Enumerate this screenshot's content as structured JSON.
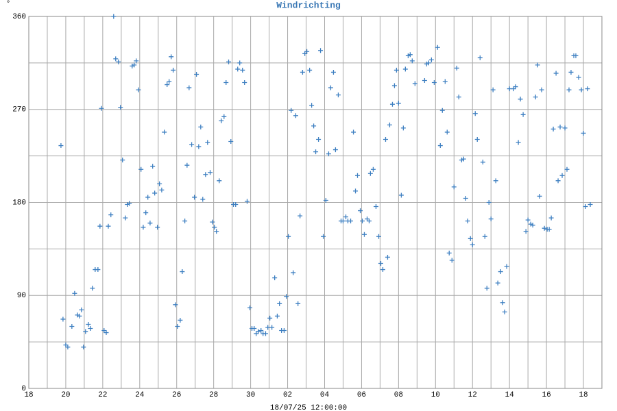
{
  "chart_data": {
    "type": "scatter",
    "title": "Windrichting",
    "xlabel": "18/07/25 12:00:00",
    "ylabel": "°",
    "color": "#3d7fc1",
    "grid": true,
    "xlim": [
      0,
      31
    ],
    "ylim": [
      0,
      360
    ],
    "xticks": [
      {
        "value": 0,
        "label": "18"
      },
      {
        "value": 2,
        "label": "20"
      },
      {
        "value": 4,
        "label": "22"
      },
      {
        "value": 6,
        "label": "24"
      },
      {
        "value": 8,
        "label": "26"
      },
      {
        "value": 10,
        "label": "28"
      },
      {
        "value": 12,
        "label": "30"
      },
      {
        "value": 14,
        "label": "02"
      },
      {
        "value": 16,
        "label": "04"
      },
      {
        "value": 18,
        "label": "06"
      },
      {
        "value": 20,
        "label": "08"
      },
      {
        "value": 22,
        "label": "10"
      },
      {
        "value": 24,
        "label": "12"
      },
      {
        "value": 26,
        "label": "14"
      },
      {
        "value": 28,
        "label": "16"
      },
      {
        "value": 30,
        "label": "18"
      }
    ],
    "minor_xticks": [
      1,
      3,
      5,
      7,
      9,
      11,
      13,
      15,
      17,
      19,
      21,
      23,
      25,
      27,
      29
    ],
    "yticks": [
      0,
      90,
      180,
      270,
      360
    ],
    "minor_yticks": [
      45,
      135,
      225,
      315
    ],
    "x": [
      1.74,
      1.85,
      2.0,
      2.11,
      2.33,
      2.48,
      2.63,
      2.74,
      2.85,
      2.96,
      3.07,
      3.22,
      3.33,
      3.44,
      3.59,
      3.74,
      3.85,
      3.93,
      4.07,
      4.19,
      4.3,
      4.44,
      4.59,
      4.7,
      4.85,
      4.96,
      5.07,
      5.22,
      5.33,
      5.44,
      5.59,
      5.7,
      5.81,
      5.93,
      6.07,
      6.19,
      6.33,
      6.44,
      6.56,
      6.7,
      6.81,
      6.96,
      7.07,
      7.19,
      7.33,
      7.48,
      7.59,
      7.7,
      7.81,
      7.93,
      8.04,
      8.19,
      8.3,
      8.44,
      8.56,
      8.67,
      8.81,
      8.96,
      9.07,
      9.19,
      9.3,
      9.41,
      9.56,
      9.67,
      9.81,
      9.93,
      10.04,
      10.15,
      10.3,
      10.41,
      10.56,
      10.67,
      10.81,
      10.93,
      11.07,
      11.19,
      11.3,
      11.41,
      11.56,
      11.67,
      11.81,
      11.96,
      12.07,
      12.19,
      12.3,
      12.41,
      12.56,
      12.67,
      12.81,
      12.93,
      13.04,
      13.15,
      13.3,
      13.44,
      13.56,
      13.67,
      13.81,
      13.93,
      14.04,
      14.19,
      14.3,
      14.44,
      14.56,
      14.67,
      14.81,
      14.93,
      15.04,
      15.19,
      15.3,
      15.41,
      15.52,
      15.67,
      15.78,
      15.93,
      16.07,
      16.22,
      16.33,
      16.48,
      16.59,
      16.74,
      16.89,
      17.0,
      17.15,
      17.26,
      17.41,
      17.56,
      17.67,
      17.78,
      17.93,
      18.04,
      18.15,
      18.3,
      18.41,
      18.48,
      18.63,
      18.78,
      18.93,
      19.04,
      19.15,
      19.3,
      19.41,
      19.52,
      19.67,
      19.78,
      19.89,
      20.0,
      20.15,
      20.26,
      20.37,
      20.52,
      20.63,
      20.74,
      20.89,
      21.41,
      21.52,
      21.63,
      21.78,
      21.93,
      22.11,
      22.26,
      22.37,
      22.52,
      22.63,
      22.74,
      22.89,
      23.0,
      23.15,
      23.26,
      23.41,
      23.52,
      23.63,
      23.74,
      23.89,
      24.0,
      24.15,
      24.26,
      24.41,
      24.56,
      24.67,
      24.78,
      24.89,
      25.0,
      25.11,
      25.26,
      25.37,
      25.52,
      25.63,
      25.74,
      25.85,
      26.0,
      26.22,
      26.33,
      26.48,
      26.59,
      26.74,
      26.89,
      27.0,
      27.15,
      27.26,
      27.41,
      27.52,
      27.63,
      27.74,
      27.89,
      28.04,
      28.15,
      28.26,
      28.37,
      28.52,
      28.63,
      28.74,
      28.85,
      29.0,
      29.11,
      29.22,
      29.33,
      29.48,
      29.59,
      29.74,
      29.89,
      30.0,
      30.11,
      30.22,
      30.37
    ],
    "values": [
      235,
      67,
      42,
      40,
      60,
      92,
      71,
      70,
      76,
      40,
      55,
      62,
      58,
      97,
      115,
      115,
      157,
      271,
      56,
      54,
      157,
      168,
      360,
      319,
      316,
      272,
      221,
      165,
      178,
      179,
      312,
      313,
      317,
      289,
      212,
      156,
      170,
      185,
      160,
      215,
      189,
      156,
      198,
      192,
      248,
      294,
      297,
      321,
      308,
      81,
      60,
      66,
      113,
      162,
      216,
      291,
      236,
      185,
      304,
      234,
      253,
      183,
      207,
      238,
      209,
      161,
      156,
      152,
      201,
      259,
      263,
      296,
      316,
      239,
      178,
      178,
      309,
      315,
      308,
      296,
      181,
      78,
      58,
      58,
      53,
      55,
      56,
      53,
      53,
      59,
      68,
      59,
      107,
      70,
      82,
      56,
      56,
      89,
      147,
      269,
      112,
      264,
      82,
      167,
      306,
      324,
      326,
      308,
      274,
      254,
      229,
      241,
      327,
      147,
      182,
      227,
      291,
      306,
      231,
      284,
      162,
      162,
      166,
      162,
      162,
      248,
      191,
      206,
      172,
      162,
      149,
      164,
      162,
      208,
      212,
      176,
      147,
      121,
      115,
      241,
      127,
      255,
      275,
      293,
      308,
      276,
      187,
      252,
      309,
      322,
      323,
      317,
      295,
      298,
      314,
      315,
      318,
      296,
      330,
      235,
      269,
      297,
      248,
      131,
      124,
      195,
      310,
      282,
      221,
      222,
      184,
      162,
      145,
      139,
      266,
      241,
      320,
      219,
      147,
      97,
      180,
      164,
      289,
      201,
      102,
      113,
      83,
      74,
      118,
      290,
      290,
      292,
      238,
      280,
      265,
      152,
      163,
      159,
      158,
      282,
      313,
      186,
      289,
      155,
      154,
      154,
      165,
      251,
      305,
      201,
      253,
      206,
      252,
      212,
      289,
      306,
      322,
      322,
      301,
      289,
      247,
      176,
      290,
      178
    ]
  }
}
